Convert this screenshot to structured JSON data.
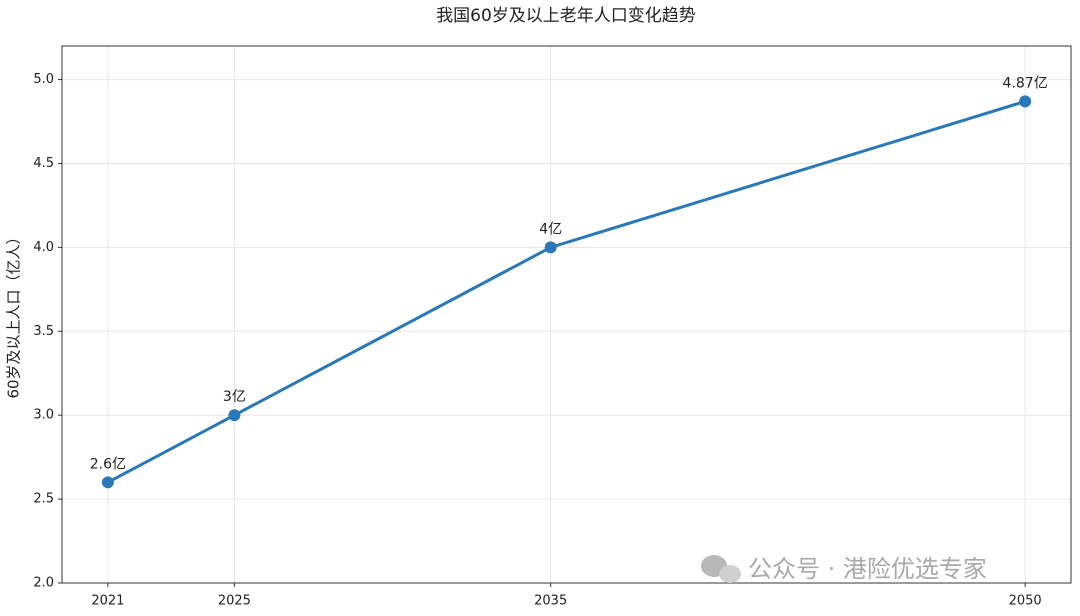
{
  "chart_data": {
    "type": "line",
    "title": "我国60岁及以上老年人口变化趋势",
    "y_label": "60岁及以上人口（亿人）",
    "x": [
      2021,
      2025,
      2035,
      2050
    ],
    "series": [
      {
        "name": "60岁及以上人口",
        "color": "#2a78b6",
        "values": [
          2.6,
          3,
          4,
          4.87
        ],
        "value_labels": [
          "2.6亿",
          "3亿",
          "4亿",
          "4.87亿"
        ]
      }
    ],
    "xlim": [
      2019.55,
      2051.45
    ],
    "xticks": [
      2021,
      2025,
      2035,
      2050
    ],
    "ylim": [
      2.0,
      5.2
    ],
    "yticks": [
      {
        "value": 2.0,
        "label": "2.0"
      },
      2.5,
      {
        "value": 3.0,
        "label": "3.0"
      },
      3.5,
      {
        "value": 4.0,
        "label": "4.0"
      },
      4.5,
      {
        "value": 5.0,
        "label": "5.0"
      }
    ],
    "grid": true,
    "watermark": "公众号 · 港险优选专家"
  }
}
